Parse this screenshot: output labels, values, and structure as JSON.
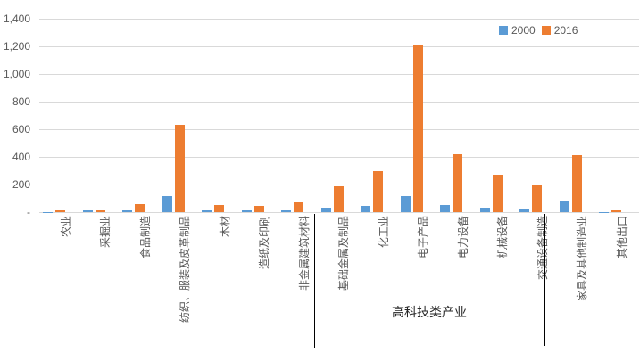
{
  "chart": {
    "legend": [
      {
        "label": "2000",
        "color": "#5B9BD5"
      },
      {
        "label": "2016",
        "color": "#ED7D31"
      }
    ],
    "y_axis": {
      "tick_labels_top_down": [
        "1,400",
        "1,200",
        "1,000",
        "800",
        "600",
        "400",
        "200",
        "-"
      ]
    },
    "group_label": "高科技类产业"
  },
  "chart_data": {
    "type": "bar",
    "title": "",
    "xlabel": "",
    "ylabel": "",
    "categories": [
      "农业",
      "采掘业",
      "食品制造",
      "纺织、服装及皮革制品",
      "木材",
      "造纸及印刷",
      "非金属建筑材料",
      "基础金属及制品",
      "化工业",
      "电子产品",
      "电力设备",
      "机械设备",
      "交通设备制造",
      "家具及其他制造业",
      "其他出口"
    ],
    "series": [
      {
        "name": "2000",
        "color": "#5B9BD5",
        "values": [
          2,
          13,
          13,
          115,
          15,
          13,
          13,
          33,
          45,
          118,
          52,
          35,
          25,
          78,
          2
        ]
      },
      {
        "name": "2016",
        "color": "#ED7D31",
        "values": [
          15,
          13,
          60,
          630,
          52,
          42,
          73,
          190,
          300,
          1215,
          420,
          270,
          200,
          415,
          13
        ]
      }
    ],
    "ylim": [
      0,
      1400
    ],
    "ytick_step": 200,
    "ytick_labels": [
      "-",
      "200",
      "400",
      "600",
      "800",
      "1,000",
      "1,200",
      "1,400"
    ],
    "grid": "horizontal",
    "legend_position": "top-right",
    "category_groups": [
      {
        "label": "",
        "start": 0,
        "end": 6
      },
      {
        "label": "高科技类产业",
        "start": 7,
        "end": 12
      },
      {
        "label": "",
        "start": 13,
        "end": 14
      }
    ]
  }
}
